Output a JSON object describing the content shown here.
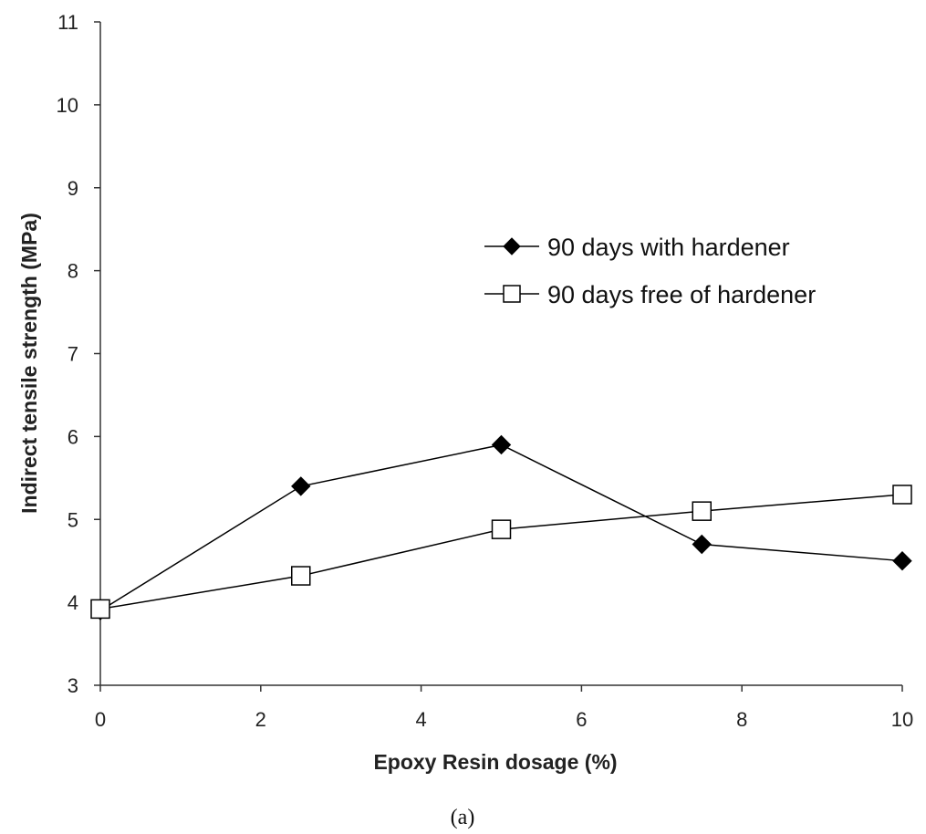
{
  "chart_data": {
    "type": "line",
    "xlabel": "Epoxy Resin dosage (%)",
    "ylabel": "Indirect tensile strength (MPa)",
    "xlim": [
      0,
      10
    ],
    "ylim": [
      3,
      11
    ],
    "x_ticks": [
      "0",
      "2",
      "4",
      "6",
      "8",
      "10"
    ],
    "y_ticks": [
      "3",
      "4",
      "5",
      "6",
      "7",
      "8",
      "9",
      "10",
      "11"
    ],
    "grid": false,
    "legend_position": "right",
    "series": [
      {
        "name": "90 days with hardener",
        "marker": "filled-diamond",
        "color": "#000000",
        "x": [
          0,
          2.5,
          5,
          7.5,
          10
        ],
        "y": [
          3.9,
          5.4,
          5.9,
          4.7,
          4.5
        ]
      },
      {
        "name": "90 days free of hardener",
        "marker": "open-square",
        "color": "#000000",
        "x": [
          0,
          2.5,
          5,
          7.5,
          10
        ],
        "y": [
          3.92,
          4.32,
          4.88,
          5.1,
          5.3
        ]
      }
    ]
  },
  "caption": "(a)"
}
